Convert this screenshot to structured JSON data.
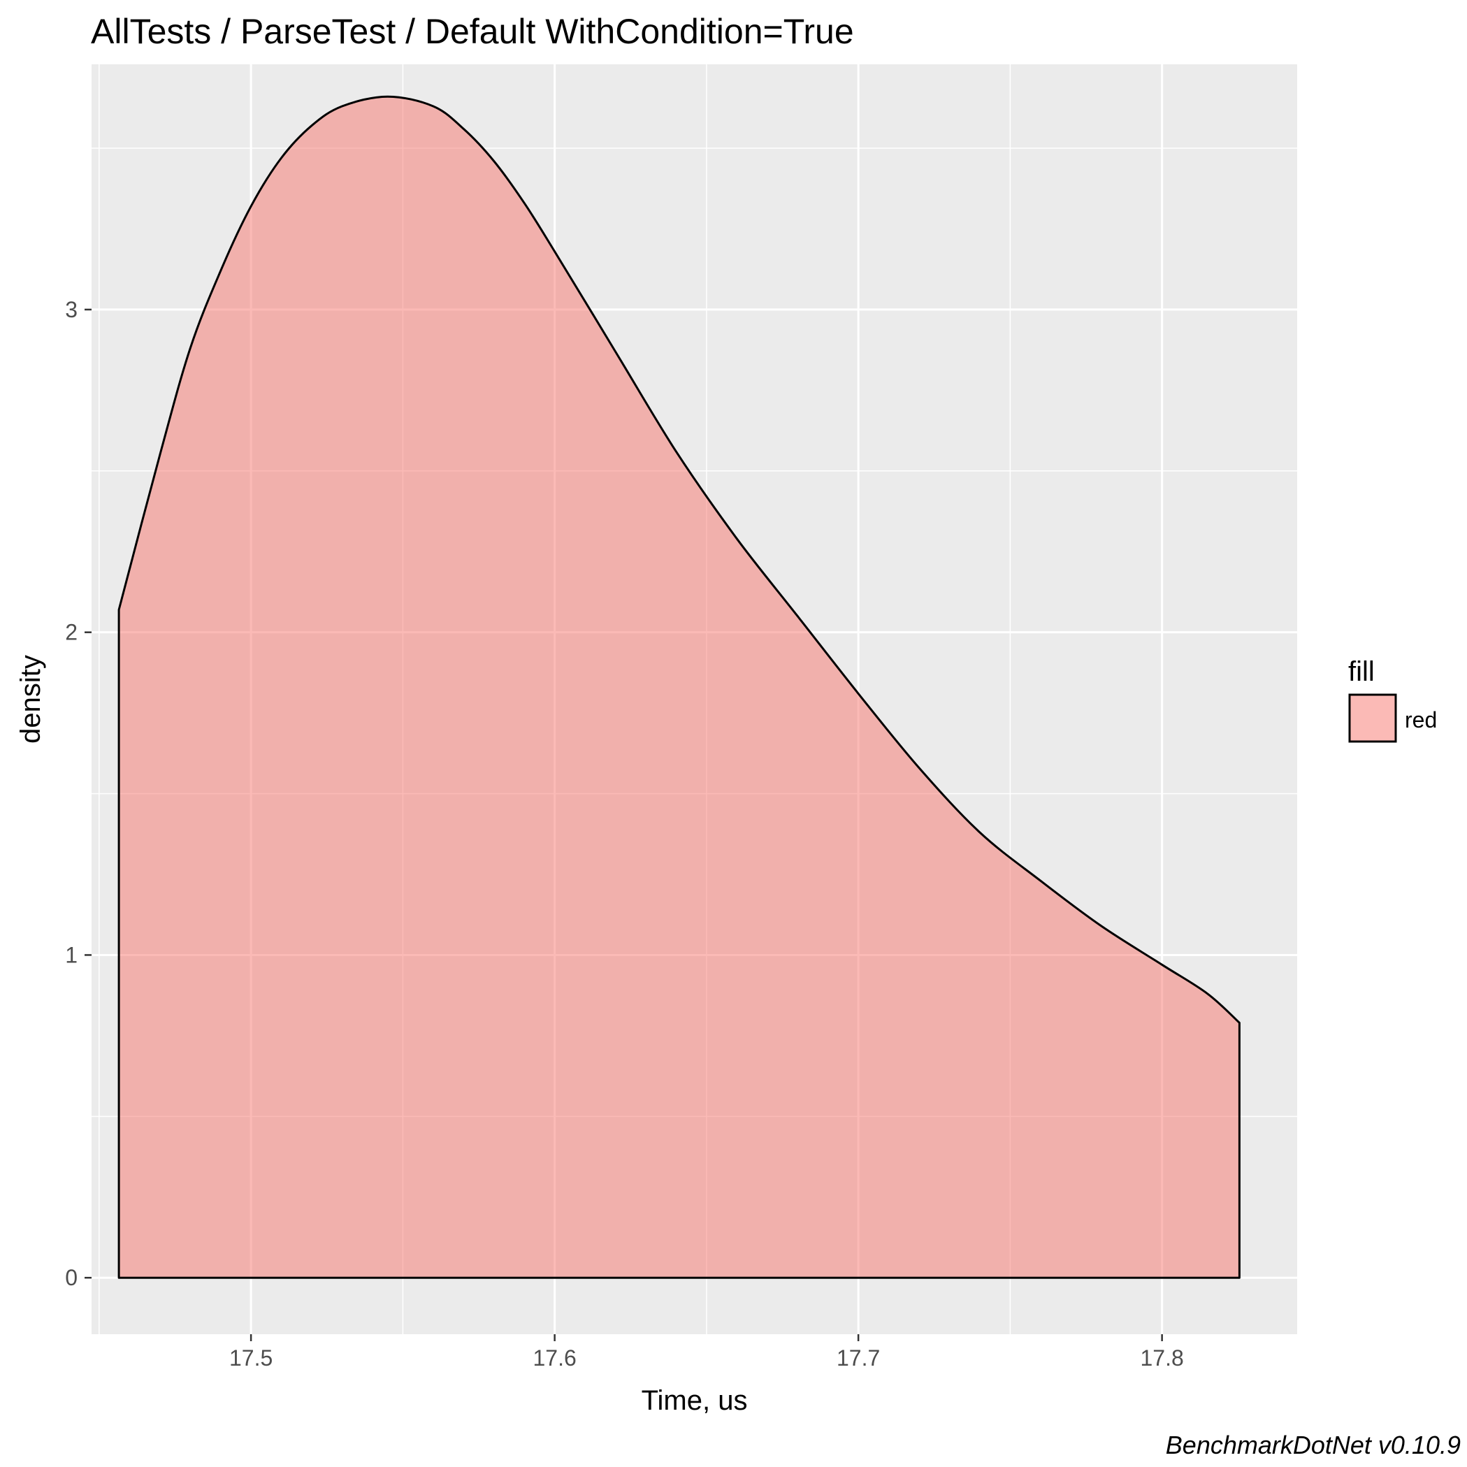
{
  "chart_data": {
    "type": "area",
    "title": "AllTests / ParseTest / Default WithCondition=True",
    "xlabel": "Time, us",
    "ylabel": "density",
    "caption": "BenchmarkDotNet v0.10.9",
    "xlim": [
      17.4475,
      17.8445
    ],
    "ylim": [
      -0.175,
      3.76
    ],
    "xticks": [
      17.5,
      17.6,
      17.7,
      17.8
    ],
    "xtick_labels": [
      "17.5",
      "17.6",
      "17.7",
      "17.8"
    ],
    "yticks": [
      0,
      1,
      2,
      3
    ],
    "ytick_labels": [
      "0",
      "1",
      "2",
      "3"
    ],
    "grid": true,
    "panel_background": "#ebebeb",
    "grid_color": "#ffffff",
    "fill_color": "#f8766d",
    "fill_opacity": 0.5,
    "outline_color": "#000000",
    "legend": {
      "title": "fill",
      "placement": "right",
      "entries": [
        {
          "label": "red",
          "color": "#f8766d"
        }
      ]
    },
    "series": [
      {
        "x": [
          17.4565,
          17.47,
          17.48,
          17.49,
          17.5,
          17.51,
          17.52,
          17.53,
          17.545,
          17.56,
          17.57,
          17.58,
          17.59,
          17.6,
          17.62,
          17.64,
          17.66,
          17.68,
          17.7,
          17.72,
          17.74,
          17.76,
          17.78,
          17.8,
          17.815,
          17.8255
        ],
        "y": [
          2.07,
          2.55,
          2.88,
          3.12,
          3.32,
          3.47,
          3.57,
          3.63,
          3.66,
          3.63,
          3.56,
          3.46,
          3.33,
          3.18,
          2.87,
          2.56,
          2.29,
          2.05,
          1.81,
          1.58,
          1.38,
          1.23,
          1.09,
          0.97,
          0.88,
          0.79
        ]
      }
    ]
  }
}
